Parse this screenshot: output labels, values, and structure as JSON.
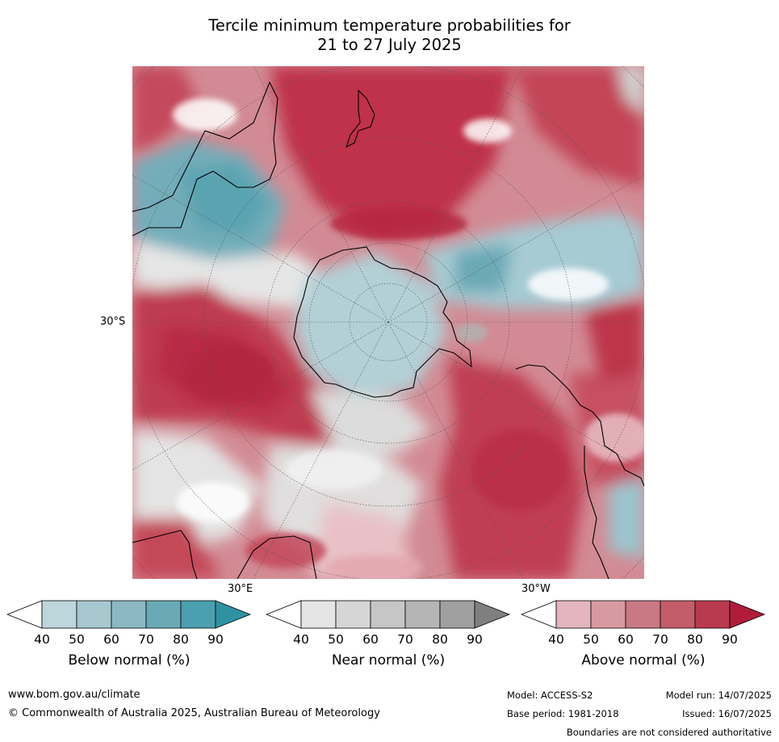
{
  "title": {
    "line1": "Tercile minimum temperature probabilities for",
    "line2": "21 to 27 July 2025"
  },
  "map": {
    "lat_label": "30°S",
    "lon_labels": [
      "30°E",
      "30°W"
    ]
  },
  "colorbars": [
    {
      "name": "below",
      "label": "Below normal (%)",
      "ticks": [
        "40",
        "50",
        "60",
        "70",
        "80",
        "90"
      ],
      "colors": [
        "#ffffff",
        "#bdd6dc",
        "#a7c8cf",
        "#8cb8c3",
        "#6aaab6",
        "#4ba0af",
        "#2e92a3"
      ]
    },
    {
      "name": "near",
      "label": "Near normal (%)",
      "ticks": [
        "40",
        "50",
        "60",
        "70",
        "80",
        "90"
      ],
      "colors": [
        "#ffffff",
        "#e5e5e5",
        "#d6d6d6",
        "#c6c6c6",
        "#b5b5b5",
        "#a0a0a0",
        "#7f7f7f"
      ]
    },
    {
      "name": "above",
      "label": "Above normal (%)",
      "ticks": [
        "40",
        "50",
        "60",
        "70",
        "80",
        "90"
      ],
      "colors": [
        "#ffffff",
        "#e2b6bc",
        "#d79aa1",
        "#c97983",
        "#c45c69",
        "#b93a4f",
        "#b01c3a"
      ]
    }
  ],
  "footer": {
    "website": "www.bom.gov.au/climate",
    "copyright": "© Commonwealth of Australia 2025, Australian Bureau of Meteorology",
    "model": "Model: ACCESS-S2",
    "model_run": "Model run: 14/07/2025",
    "base_period": "Base period: 1981-2018",
    "issued": "Issued: 16/07/2025",
    "disclaimer": "Boundaries are not considered authoritative"
  }
}
